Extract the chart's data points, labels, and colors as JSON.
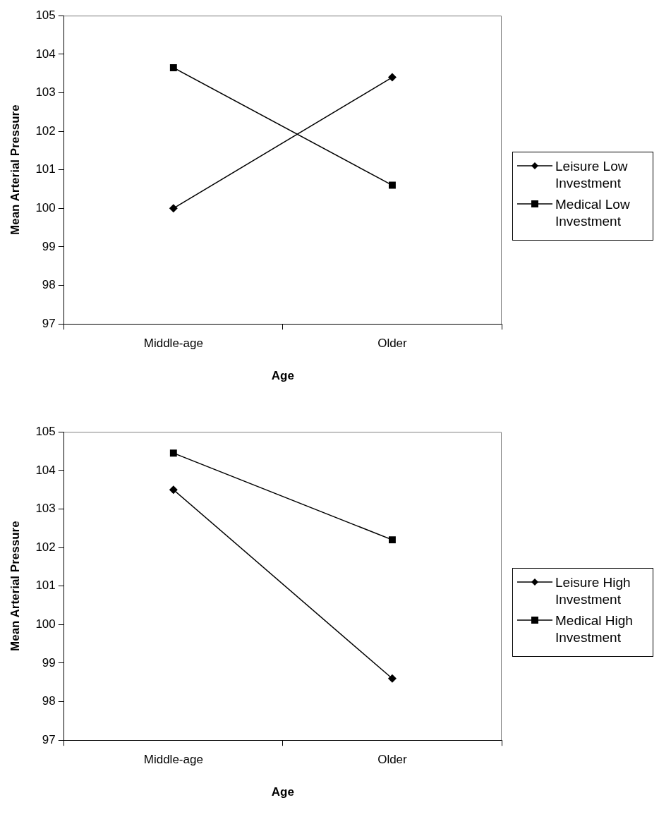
{
  "chart_data": [
    {
      "type": "line",
      "xlabel": "Age",
      "ylabel": "Mean Arterial Pressure",
      "categories": [
        "Middle-age",
        "Older"
      ],
      "ylim": [
        97,
        105
      ],
      "yticks": [
        97,
        98,
        99,
        100,
        101,
        102,
        103,
        104,
        105
      ],
      "grid": false,
      "legend": "right",
      "line_style": "solid",
      "series": [
        {
          "name": "Leisure Low Investment",
          "color": "#000000",
          "marker": "diamond",
          "values": [
            100.0,
            103.4
          ]
        },
        {
          "name": "Medical Low Investment",
          "color": "#000000",
          "marker": "square",
          "values": [
            103.65,
            100.6
          ]
        }
      ]
    },
    {
      "type": "line",
      "xlabel": "Age",
      "ylabel": "Mean Arterial Pressure",
      "categories": [
        "Middle-age",
        "Older"
      ],
      "ylim": [
        97,
        105
      ],
      "yticks": [
        97,
        98,
        99,
        100,
        101,
        102,
        103,
        104,
        105
      ],
      "grid": false,
      "legend": "right",
      "line_style": "solid",
      "series": [
        {
          "name": "Leisure High Investment",
          "color": "#000000",
          "marker": "diamond",
          "values": [
            103.5,
            98.6
          ]
        },
        {
          "name": "Medical High Investment",
          "color": "#000000",
          "marker": "square",
          "values": [
            104.45,
            102.2
          ]
        }
      ]
    }
  ]
}
